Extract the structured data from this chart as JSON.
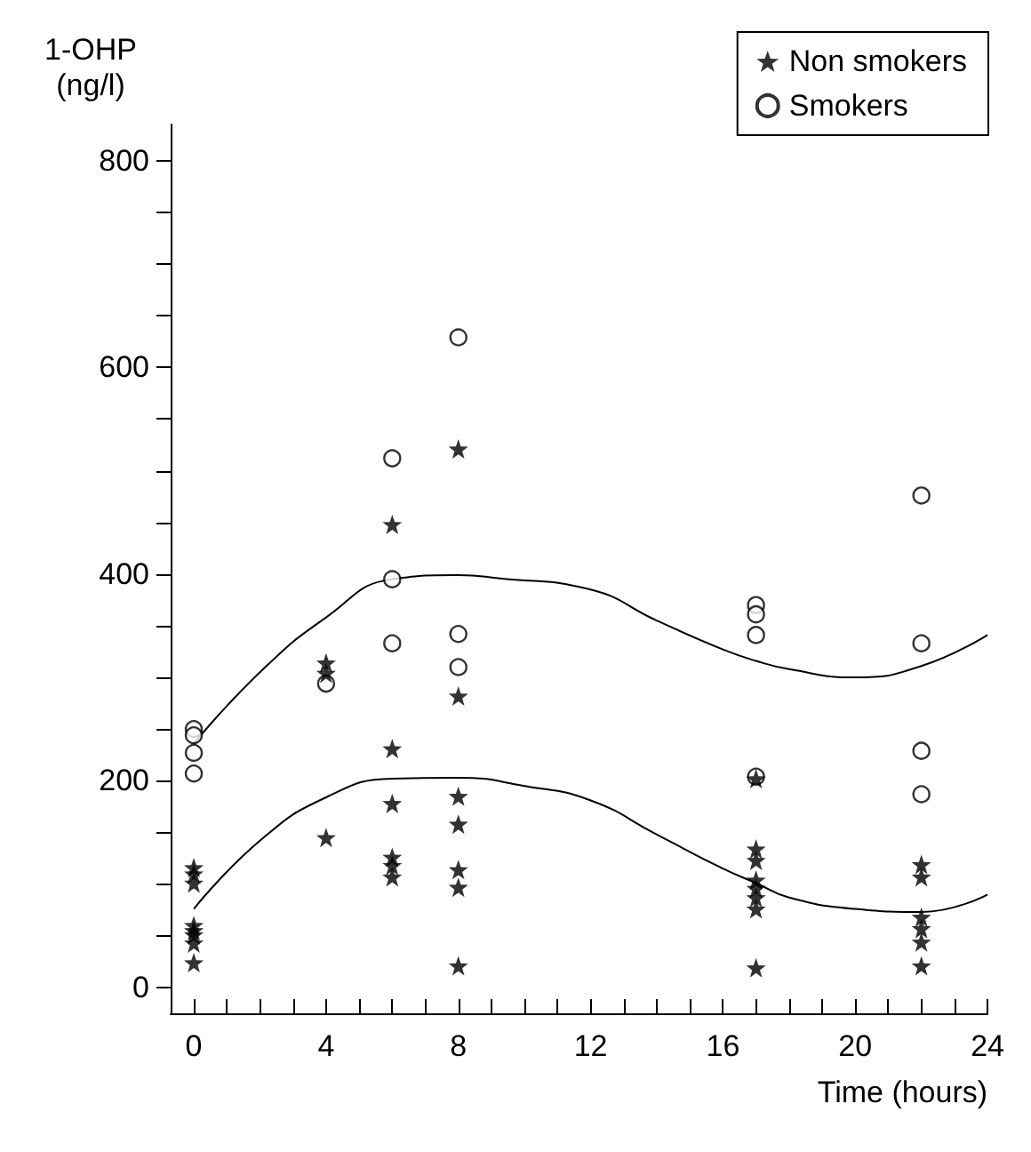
{
  "chart_data": {
    "type": "scatter",
    "xlabel": "Time (hours)",
    "ylabel": "1-OHP\n(ng/l)",
    "xlim": [
      -0.7,
      24
    ],
    "ylim": [
      -25,
      835
    ],
    "xticks": [
      0,
      {
        "value": 1,
        "label": null
      },
      {
        "value": 2,
        "label": null
      },
      {
        "value": 3,
        "label": null
      },
      4,
      {
        "value": 5,
        "label": null
      },
      {
        "value": 6,
        "label": null
      },
      {
        "value": 7,
        "label": null
      },
      8,
      {
        "value": 9,
        "label": null
      },
      {
        "value": 10,
        "label": null
      },
      {
        "value": 11,
        "label": null
      },
      12,
      {
        "value": 13,
        "label": null
      },
      {
        "value": 14,
        "label": null
      },
      {
        "value": 15,
        "label": null
      },
      16,
      {
        "value": 17,
        "label": null
      },
      {
        "value": 18,
        "label": null
      },
      {
        "value": 19,
        "label": null
      },
      20,
      {
        "value": 21,
        "label": null
      },
      {
        "value": 22,
        "label": null
      },
      {
        "value": 23,
        "label": null
      },
      24
    ],
    "yticks": [
      0,
      {
        "value": 50,
        "label": null
      },
      {
        "value": 100,
        "label": null
      },
      {
        "value": 150,
        "label": null
      },
      200,
      {
        "value": 250,
        "label": null
      },
      {
        "value": 300,
        "label": null
      },
      {
        "value": 350,
        "label": null
      },
      400,
      {
        "value": 450,
        "label": null
      },
      {
        "value": 500,
        "label": null
      },
      {
        "value": 550,
        "label": null
      },
      600,
      {
        "value": 650,
        "label": null
      },
      {
        "value": 700,
        "label": null
      },
      {
        "value": 750,
        "label": null
      },
      800
    ],
    "grid": false,
    "legend": "top right",
    "series": [
      {
        "name": "Non smokers",
        "color": "#000000",
        "marker": "star",
        "x": [
          0,
          0,
          0,
          0,
          0,
          0,
          0,
          0,
          4,
          4,
          4,
          6,
          6,
          6,
          6,
          6,
          6,
          8,
          8,
          8,
          8,
          8,
          8,
          8,
          17,
          17,
          17,
          17,
          17,
          17,
          17,
          17,
          22,
          22,
          22,
          22,
          22,
          22
        ],
        "values": [
          116,
          110,
          101,
          60,
          55,
          51,
          43,
          24,
          314,
          304,
          145,
          448,
          231,
          178,
          126,
          118,
          107,
          521,
          282,
          185,
          158,
          114,
          97,
          21,
          202,
          134,
          123,
          104,
          96,
          87,
          76,
          19,
          119,
          107,
          68,
          57,
          44,
          21
        ]
      },
      {
        "name": "Smokers",
        "color": "#000000",
        "marker": "circle",
        "x": [
          0,
          0,
          0,
          0,
          4,
          6,
          6,
          6,
          8,
          8,
          8,
          17,
          17,
          17,
          17,
          22,
          22,
          22,
          22
        ],
        "values": [
          250,
          244,
          227,
          207,
          294,
          512,
          395,
          333,
          629,
          342,
          310,
          370,
          361,
          341,
          204,
          476,
          333,
          229,
          187
        ]
      },
      {
        "type": "line",
        "color": "#000000",
        "marker": "none",
        "line_style": "solid",
        "x": [
          0,
          2,
          4,
          6,
          8,
          9.2,
          12,
          14,
          16,
          17,
          18,
          20,
          22,
          24
        ],
        "values": [
          236,
          305,
          358,
          395,
          399,
          396,
          385,
          355,
          327,
          316,
          308,
          300,
          311,
          341
        ]
      },
      {
        "type": "line",
        "color": "#000000",
        "marker": "none",
        "line_style": "solid",
        "x": [
          0,
          2,
          4,
          6,
          8,
          10,
          12,
          14,
          16,
          17,
          18,
          20,
          22,
          24
        ],
        "values": [
          76,
          142,
          184,
          202,
          203,
          195,
          181,
          148,
          115,
          101,
          87,
          76,
          73,
          90
        ]
      }
    ]
  }
}
